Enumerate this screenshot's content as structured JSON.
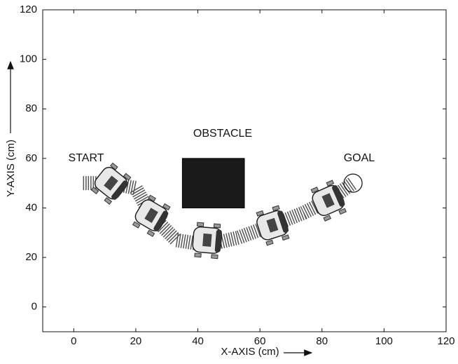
{
  "chart_data": {
    "type": "scatter",
    "xlabel": "X-AXIS (cm)",
    "ylabel": "Y-AXIS (cm)",
    "xlim": [
      -10,
      120
    ],
    "ylim": [
      -10,
      120
    ],
    "xticks": [
      0,
      20,
      40,
      60,
      80,
      100,
      120
    ],
    "yticks": [
      0,
      20,
      40,
      60,
      80,
      100,
      120
    ],
    "annotations": [
      {
        "text": "START",
        "x": 4,
        "y": 60
      },
      {
        "text": "OBSTACLE",
        "x": 48,
        "y": 70
      },
      {
        "text": "GOAL",
        "x": 92,
        "y": 60
      }
    ],
    "obstacle": {
      "x": [
        35,
        55
      ],
      "y": [
        40,
        60
      ],
      "color": "#1a1a1a"
    },
    "goal": {
      "x": 90,
      "y": 50
    },
    "path": {
      "x": [
        3,
        12,
        20,
        25,
        33,
        43,
        53,
        64,
        74,
        82,
        90
      ],
      "y": [
        50,
        50,
        48,
        37,
        27,
        25,
        28,
        33,
        38,
        43,
        50
      ],
      "color": "#555555"
    },
    "robots": {
      "x": [
        12,
        25,
        43,
        64,
        82
      ],
      "y": [
        50,
        37,
        27,
        33,
        43
      ],
      "color": "#e8e8e8"
    }
  }
}
